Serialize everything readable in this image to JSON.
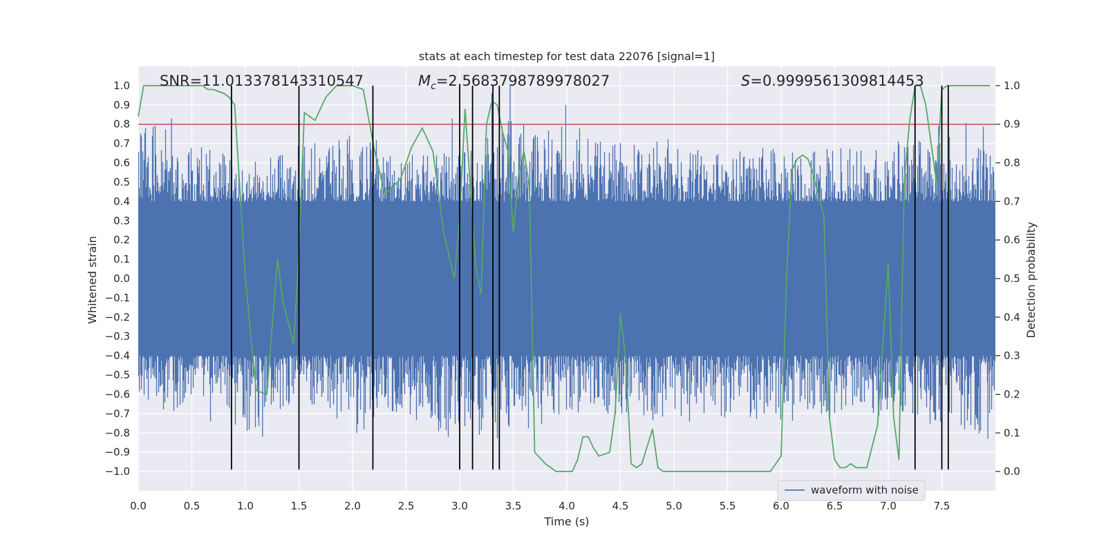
{
  "chart_data": {
    "type": "line",
    "title": "stats at each timestep for test data 22076 [signal=1]",
    "xlabel": "Time (s)",
    "ylabel": "Whitened strain",
    "y2label": "Detection probability",
    "xlim": [
      0,
      8
    ],
    "ylim": [
      -1.1,
      1.1
    ],
    "y2lim": [
      -0.05,
      1.05
    ],
    "x_ticks": [
      0.0,
      0.5,
      1.0,
      1.5,
      2.0,
      2.5,
      3.0,
      3.5,
      4.0,
      4.5,
      5.0,
      5.5,
      6.0,
      6.5,
      7.0,
      7.5
    ],
    "y_ticks": [
      -1.0,
      -0.9,
      -0.8,
      -0.7,
      -0.6,
      -0.5,
      -0.4,
      -0.3,
      -0.2,
      -0.1,
      0.0,
      0.1,
      0.2,
      0.3,
      0.4,
      0.5,
      0.6,
      0.7,
      0.8,
      0.9,
      1.0
    ],
    "y2_ticks": [
      0.0,
      0.1,
      0.2,
      0.3,
      0.4,
      0.5,
      0.6,
      0.7,
      0.8,
      0.9,
      1.0
    ],
    "grid": true,
    "legend_position": "lower right",
    "annotations": {
      "snr": "SNR=11.013378143310547",
      "mc_symbol": "M",
      "mc_sub": "c",
      "mc_value": "=2.5683798789978027",
      "s_symbol": "S",
      "s_value": "=0.9999561309814453"
    },
    "series": [
      {
        "name": "waveform with noise",
        "axis": "left",
        "color": "#4c72b0",
        "description": "dense noisy strain trace",
        "x_range": [
          0,
          8
        ],
        "core_amplitude": 0.4,
        "envelope_x": [
          0.0,
          0.5,
          1.0,
          1.5,
          2.0,
          2.5,
          3.0,
          3.5,
          4.0,
          4.5,
          5.0,
          5.5,
          6.0,
          6.5,
          7.0,
          7.5,
          8.0
        ],
        "envelope_max": [
          0.83,
          0.72,
          0.6,
          0.7,
          0.78,
          0.65,
          0.68,
          0.84,
          0.8,
          0.72,
          0.73,
          0.66,
          0.69,
          0.67,
          0.73,
          0.78,
          0.85
        ],
        "envelope_min": [
          -0.67,
          -0.7,
          -0.82,
          -0.63,
          -0.8,
          -0.72,
          -0.86,
          -0.82,
          -0.7,
          -0.72,
          -0.75,
          -0.72,
          -0.75,
          -0.72,
          -0.75,
          -0.76,
          -0.83
        ],
        "spikes": [
          [
            0.31,
            0.83
          ],
          [
            3.47,
            1.0
          ],
          [
            3.3,
            0.96
          ],
          [
            3.99,
            0.9
          ],
          [
            2.93,
            0.83
          ],
          [
            3.12,
            -0.92
          ],
          [
            1.16,
            -0.82
          ],
          [
            7.47,
            0.79
          ],
          [
            7.93,
            -0.83
          ],
          [
            2.04,
            -0.8
          ]
        ]
      },
      {
        "name": "",
        "axis": "right",
        "color": "#55a868",
        "x": [
          0.0,
          0.05,
          0.1,
          0.2,
          0.3,
          0.4,
          0.5,
          0.6,
          0.65,
          0.7,
          0.8,
          0.85,
          0.9,
          1.0,
          1.1,
          1.2,
          1.3,
          1.35,
          1.45,
          1.5,
          1.55,
          1.65,
          1.75,
          1.85,
          2.0,
          2.1,
          2.2,
          2.3,
          2.35,
          2.45,
          2.55,
          2.65,
          2.75,
          2.85,
          2.95,
          3.0,
          3.05,
          3.15,
          3.2,
          3.25,
          3.3,
          3.35,
          3.4,
          3.45,
          3.5,
          3.55,
          3.6,
          3.65,
          3.7,
          3.8,
          3.85,
          3.9,
          3.95,
          4.0,
          4.05,
          4.1,
          4.15,
          4.2,
          4.25,
          4.3,
          4.4,
          4.45,
          4.5,
          4.55,
          4.6,
          4.65,
          4.7,
          4.8,
          4.85,
          4.9,
          4.95,
          5.0,
          5.05,
          5.1,
          5.2,
          5.3,
          5.4,
          5.5,
          5.6,
          5.7,
          5.8,
          5.9,
          6.0,
          6.05,
          6.1,
          6.15,
          6.2,
          6.25,
          6.3,
          6.4,
          6.45,
          6.5,
          6.55,
          6.6,
          6.65,
          6.7,
          6.8,
          6.9,
          7.0,
          7.05,
          7.1,
          7.15,
          7.2,
          7.25,
          7.3,
          7.35,
          7.4,
          7.45,
          7.5,
          7.55,
          7.6,
          7.65,
          7.7,
          7.8,
          7.95
        ],
        "y": [
          0.92,
          1.0,
          1.0,
          1.0,
          1.0,
          1.0,
          1.0,
          1.0,
          0.99,
          0.99,
          0.98,
          0.97,
          0.95,
          0.5,
          0.21,
          0.2,
          0.55,
          0.44,
          0.33,
          0.57,
          0.93,
          0.91,
          0.97,
          1.0,
          1.0,
          0.99,
          0.84,
          0.72,
          0.73,
          0.76,
          0.84,
          0.89,
          0.83,
          0.62,
          0.5,
          0.66,
          0.94,
          0.53,
          0.46,
          0.9,
          0.96,
          0.95,
          0.88,
          0.83,
          0.62,
          0.77,
          0.83,
          0.74,
          0.05,
          0.02,
          0.01,
          0.0,
          0.0,
          0.0,
          0.0,
          0.03,
          0.09,
          0.09,
          0.06,
          0.04,
          0.05,
          0.15,
          0.41,
          0.29,
          0.02,
          0.01,
          0.02,
          0.11,
          0.01,
          0.0,
          0.0,
          0.0,
          0.0,
          0.0,
          0.0,
          0.0,
          0.0,
          0.0,
          0.0,
          0.0,
          0.0,
          0.0,
          0.04,
          0.5,
          0.78,
          0.81,
          0.82,
          0.81,
          0.77,
          0.66,
          0.14,
          0.03,
          0.01,
          0.01,
          0.02,
          0.01,
          0.01,
          0.12,
          0.54,
          0.14,
          0.03,
          0.76,
          0.91,
          1.0,
          1.0,
          0.95,
          0.85,
          0.75,
          0.99,
          1.0,
          1.0,
          1.0,
          1.0,
          1.0,
          1.0
        ]
      }
    ],
    "threshold": {
      "axis": "left",
      "value": 0.8,
      "color": "#c44e52"
    },
    "vlines": {
      "x": [
        0.87,
        1.5,
        2.19,
        3.0,
        3.12,
        3.31,
        3.37,
        7.25,
        7.5,
        7.56
      ],
      "y_range": [
        -0.99,
        1.0
      ],
      "color": "#000000"
    }
  }
}
